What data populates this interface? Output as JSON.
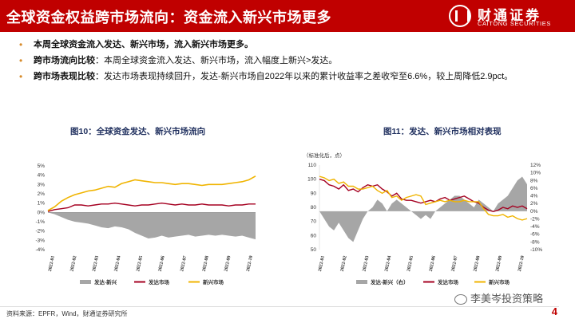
{
  "header": {
    "title": "全球资金权益跨市场流向：资金流入新兴市场更多",
    "logo_cn": "财通证券",
    "logo_en": "CAITONG SECURITIES",
    "accent_color": "#c00000"
  },
  "bullets": [
    {
      "strong": "本周全球资金流入发达、新兴市场，流入新兴市场更多。",
      "text": ""
    },
    {
      "strong": "跨市场流向比较",
      "text": "：本周全球资金流入发达、新兴市场，流入幅度上新兴>发达。"
    },
    {
      "strong": "跨市场表现比较",
      "text": "：发达市场表现持续回升，发达-新兴市场自2022年以来的累计收益率之差收窄至6.6%，较上周降低2.9pct。"
    }
  ],
  "chart_data": [
    {
      "type": "area",
      "title": "图10：全球资金发达、新兴市场流向",
      "ylim": [
        -4,
        5
      ],
      "yticks": [
        "5%",
        "4%",
        "3%",
        "2%",
        "1%",
        "0%",
        "-1%",
        "-2%",
        "-3%",
        "-4%"
      ],
      "x_ticks": [
        "2022-01",
        "2022-02",
        "2022-03",
        "2022-04",
        "2022-05",
        "2022-06",
        "2022-07",
        "2022-08",
        "2022-09",
        "2022-10"
      ],
      "legend_position": "bottom",
      "series": [
        {
          "name": "发达-新兴",
          "kind": "area",
          "color": "#a6a6a6",
          "values": [
            0.0,
            -0.2,
            -0.5,
            -0.8,
            -1.0,
            -1.1,
            -1.2,
            -1.4,
            -1.6,
            -1.7,
            -1.5,
            -1.6,
            -1.8,
            -2.2,
            -2.5,
            -2.8,
            -2.7,
            -2.5,
            -2.7,
            -2.6,
            -2.5,
            -2.4,
            -2.6,
            -2.5,
            -2.4,
            -2.5,
            -2.4,
            -2.5,
            -2.6,
            -2.5,
            -2.7,
            -2.9
          ]
        },
        {
          "name": "发达市场",
          "kind": "line",
          "color": "#a50021",
          "values": [
            0.1,
            0.3,
            0.4,
            0.5,
            0.8,
            0.8,
            0.7,
            0.8,
            0.9,
            0.9,
            1.0,
            0.9,
            0.8,
            0.7,
            0.8,
            0.8,
            0.9,
            1.0,
            0.9,
            0.8,
            0.9,
            0.8,
            0.8,
            0.9,
            0.8,
            0.8,
            0.8,
            0.7,
            0.8,
            0.8,
            0.9,
            0.9
          ]
        },
        {
          "name": "新兴市场",
          "kind": "line",
          "color": "#f0b400",
          "values": [
            0.2,
            0.6,
            1.2,
            1.6,
            1.9,
            2.1,
            2.3,
            2.4,
            2.6,
            2.8,
            2.7,
            3.1,
            3.3,
            3.5,
            3.4,
            3.3,
            3.2,
            3.2,
            3.1,
            3.0,
            3.1,
            3.1,
            3.0,
            2.9,
            3.0,
            3.0,
            3.0,
            3.1,
            3.2,
            3.3,
            3.5,
            3.9
          ]
        }
      ]
    },
    {
      "type": "line",
      "title": "图11：发达、新兴市场相对表现",
      "unit_note": "（标准化后，点）",
      "ylim": [
        50,
        110
      ],
      "yticks": [
        "110",
        "100",
        "90",
        "80",
        "70",
        "60",
        "50"
      ],
      "y2lim": [
        -10,
        12
      ],
      "y2ticks": [
        "12%",
        "10%",
        "8%",
        "6%",
        "4%",
        "2%",
        "0%",
        "-2%",
        "-4%",
        "-6%",
        "-8%",
        "-10%"
      ],
      "x_ticks": [
        "2022-01",
        "2022-02",
        "2022-03",
        "2022-04",
        "2022-05",
        "2022-06",
        "2022-07",
        "2022-08",
        "2022-09",
        "2022-10"
      ],
      "legend_position": "bottom",
      "series": [
        {
          "name": "发达-新兴（右）",
          "kind": "area",
          "axis": "right",
          "color": "#a6a6a6",
          "values": [
            0,
            -2,
            -4,
            -5,
            -3,
            -5,
            -7,
            -8,
            -5,
            -2,
            0,
            1,
            3,
            2,
            0,
            2,
            3,
            2,
            1,
            0,
            -1,
            -2,
            -1,
            -2,
            0,
            1,
            2,
            3,
            4,
            4,
            3,
            2,
            1,
            3,
            2,
            1,
            0,
            2,
            3,
            4,
            6,
            8,
            9,
            7
          ]
        },
        {
          "name": "发达市场",
          "kind": "line",
          "axis": "left",
          "color": "#a50021",
          "values": [
            100,
            99,
            96,
            95,
            93,
            96,
            92,
            93,
            91,
            94,
            96,
            95,
            96,
            93,
            91,
            88,
            90,
            86,
            85,
            85,
            84,
            83,
            84,
            85,
            84,
            86,
            87,
            85,
            86,
            87,
            88,
            86,
            84,
            83,
            80,
            78,
            77,
            78,
            80,
            79,
            81,
            80,
            81,
            79
          ]
        },
        {
          "name": "新兴市场",
          "kind": "line",
          "axis": "left",
          "color": "#f0b400",
          "values": [
            102,
            101,
            99,
            100,
            97,
            98,
            95,
            95,
            93,
            93,
            94,
            95,
            92,
            90,
            92,
            87,
            88,
            85,
            87,
            88,
            89,
            88,
            82,
            83,
            84,
            85,
            84,
            85,
            84,
            84,
            85,
            84,
            84,
            84,
            79,
            75,
            74,
            74,
            75,
            73,
            74,
            72,
            71,
            72
          ]
        }
      ]
    }
  ],
  "footer": {
    "source": "资料来源：EPFR，Wind，财通证券研究所",
    "watermark": "李美岑投资策略",
    "page_number": "4"
  }
}
